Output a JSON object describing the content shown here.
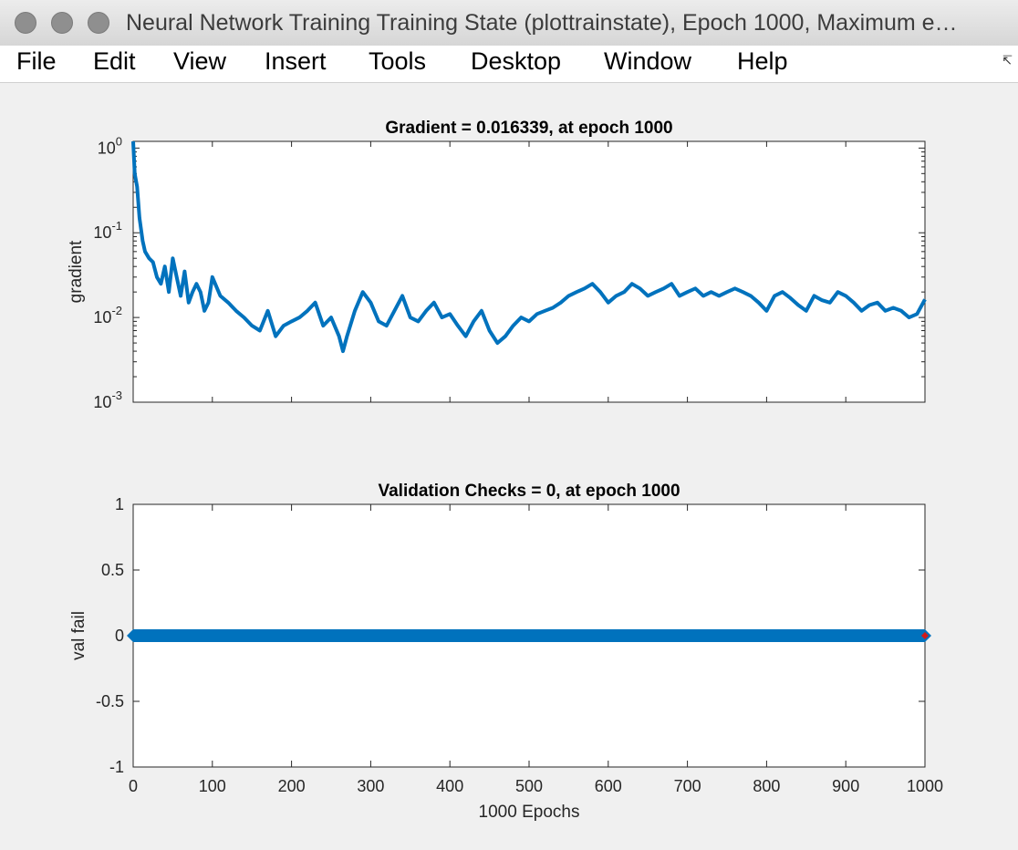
{
  "window": {
    "title": "Neural Network Training Training State (plottrainstate), Epoch 1000, Maximum e…"
  },
  "menu": [
    "File",
    "Edit",
    "View",
    "Insert",
    "Tools",
    "Desktop",
    "Window",
    "Help"
  ],
  "icons": {
    "close": "close-button",
    "minimize": "minimize-button",
    "zoom": "zoom-button",
    "dock": "dock-arrow-icon"
  },
  "colors": {
    "line": "#0072bd",
    "best_marker": "#d11a1a"
  },
  "chart_data": [
    {
      "type": "line",
      "title": "Gradient = 0.016339, at epoch 1000",
      "ylabel": "gradient",
      "xlabel": "",
      "yscale": "log",
      "xlim": [
        0,
        1000
      ],
      "ylim": [
        0.001,
        1.2
      ],
      "yticks": [
        0.001,
        0.01,
        0.1,
        1
      ],
      "ytick_labels": [
        {
          "base": "10",
          "exp": "-3"
        },
        {
          "base": "10",
          "exp": "-2"
        },
        {
          "base": "10",
          "exp": "-1"
        },
        {
          "base": "10",
          "exp": "0"
        }
      ],
      "series": [
        {
          "x": [
            0,
            2,
            5,
            8,
            12,
            15,
            20,
            25,
            30,
            35,
            40,
            45,
            50,
            55,
            60,
            65,
            70,
            75,
            80,
            85,
            90,
            95,
            100,
            110,
            120,
            130,
            140,
            150,
            160,
            170,
            180,
            190,
            200,
            210,
            220,
            230,
            240,
            250,
            260,
            265,
            270,
            280,
            290,
            300,
            310,
            320,
            330,
            340,
            350,
            360,
            370,
            380,
            390,
            400,
            410,
            420,
            430,
            440,
            450,
            460,
            470,
            480,
            490,
            500,
            510,
            520,
            530,
            540,
            550,
            560,
            570,
            580,
            590,
            600,
            610,
            620,
            630,
            640,
            650,
            660,
            670,
            680,
            690,
            700,
            710,
            720,
            730,
            740,
            750,
            760,
            770,
            780,
            790,
            800,
            810,
            820,
            830,
            840,
            850,
            860,
            870,
            880,
            890,
            900,
            910,
            920,
            930,
            940,
            950,
            960,
            970,
            980,
            990,
            1000
          ],
          "values": [
            1.2,
            0.5,
            0.35,
            0.15,
            0.08,
            0.06,
            0.05,
            0.045,
            0.03,
            0.025,
            0.04,
            0.02,
            0.05,
            0.03,
            0.018,
            0.035,
            0.015,
            0.02,
            0.025,
            0.02,
            0.012,
            0.015,
            0.03,
            0.018,
            0.015,
            0.012,
            0.01,
            0.008,
            0.007,
            0.012,
            0.006,
            0.008,
            0.009,
            0.01,
            0.012,
            0.015,
            0.008,
            0.01,
            0.006,
            0.004,
            0.006,
            0.012,
            0.02,
            0.015,
            0.009,
            0.008,
            0.012,
            0.018,
            0.01,
            0.009,
            0.012,
            0.015,
            0.01,
            0.011,
            0.008,
            0.006,
            0.009,
            0.012,
            0.007,
            0.005,
            0.006,
            0.008,
            0.01,
            0.009,
            0.011,
            0.012,
            0.013,
            0.015,
            0.018,
            0.02,
            0.022,
            0.025,
            0.02,
            0.015,
            0.018,
            0.02,
            0.025,
            0.022,
            0.018,
            0.02,
            0.022,
            0.025,
            0.018,
            0.02,
            0.022,
            0.018,
            0.02,
            0.018,
            0.02,
            0.022,
            0.02,
            0.018,
            0.015,
            0.012,
            0.018,
            0.02,
            0.017,
            0.014,
            0.012,
            0.018,
            0.016,
            0.015,
            0.02,
            0.018,
            0.015,
            0.012,
            0.014,
            0.015,
            0.012,
            0.013,
            0.012,
            0.01,
            0.011,
            0.016339
          ]
        }
      ]
    },
    {
      "type": "line",
      "title": "Validation Checks = 0, at epoch 1000",
      "ylabel": "val fail",
      "xlabel": "1000 Epochs",
      "xlim": [
        0,
        1000
      ],
      "ylim": [
        -1,
        1
      ],
      "xticks": [
        0,
        100,
        200,
        300,
        400,
        500,
        600,
        700,
        800,
        900,
        1000
      ],
      "xtick_labels": [
        "0",
        "100",
        "200",
        "300",
        "400",
        "500",
        "600",
        "700",
        "800",
        "900",
        "1000"
      ],
      "yticks": [
        -1,
        -0.5,
        0,
        0.5,
        1
      ],
      "ytick_labels": [
        "-1",
        "-0.5",
        "0",
        "0.5",
        "1"
      ],
      "series": [
        {
          "x": [
            0,
            1000
          ],
          "values": [
            0,
            0
          ]
        }
      ],
      "best_point": {
        "x": 1000,
        "y": 0
      }
    }
  ]
}
